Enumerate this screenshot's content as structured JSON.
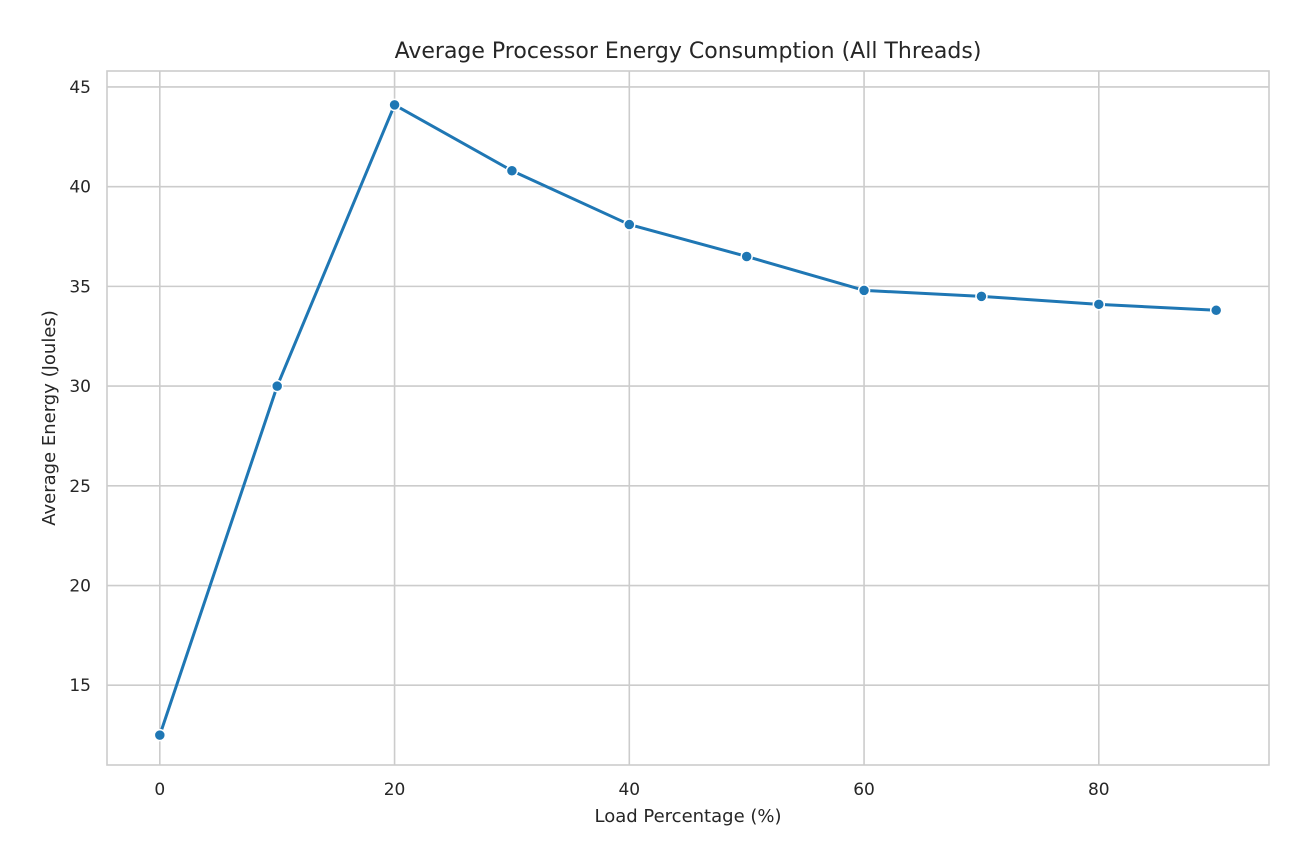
{
  "chart_data": {
    "type": "line",
    "title": "Average Processor Energy Consumption (All Threads)",
    "xlabel": "Load Percentage (%)",
    "ylabel": "Average Energy (Joules)",
    "x": [
      0,
      10,
      20,
      30,
      40,
      50,
      60,
      70,
      80,
      90
    ],
    "series": [
      {
        "values": [
          12.5,
          30.0,
          44.1,
          40.8,
          38.1,
          36.5,
          34.8,
          34.5,
          34.1,
          33.8
        ],
        "color": "#1f77b4",
        "marker": "circle"
      }
    ],
    "xlim": [
      -4.5,
      94.5
    ],
    "ylim": [
      11.0,
      45.8
    ],
    "xticks": [
      0,
      20,
      40,
      60,
      80
    ],
    "yticks": [
      15,
      20,
      25,
      30,
      35,
      40,
      45
    ],
    "grid": true,
    "legend": "none",
    "colors": {
      "line": "#1f77b4",
      "grid": "#cccccc",
      "axes_edge": "#cccccc",
      "text": "#262626",
      "background": "#ffffff"
    }
  }
}
